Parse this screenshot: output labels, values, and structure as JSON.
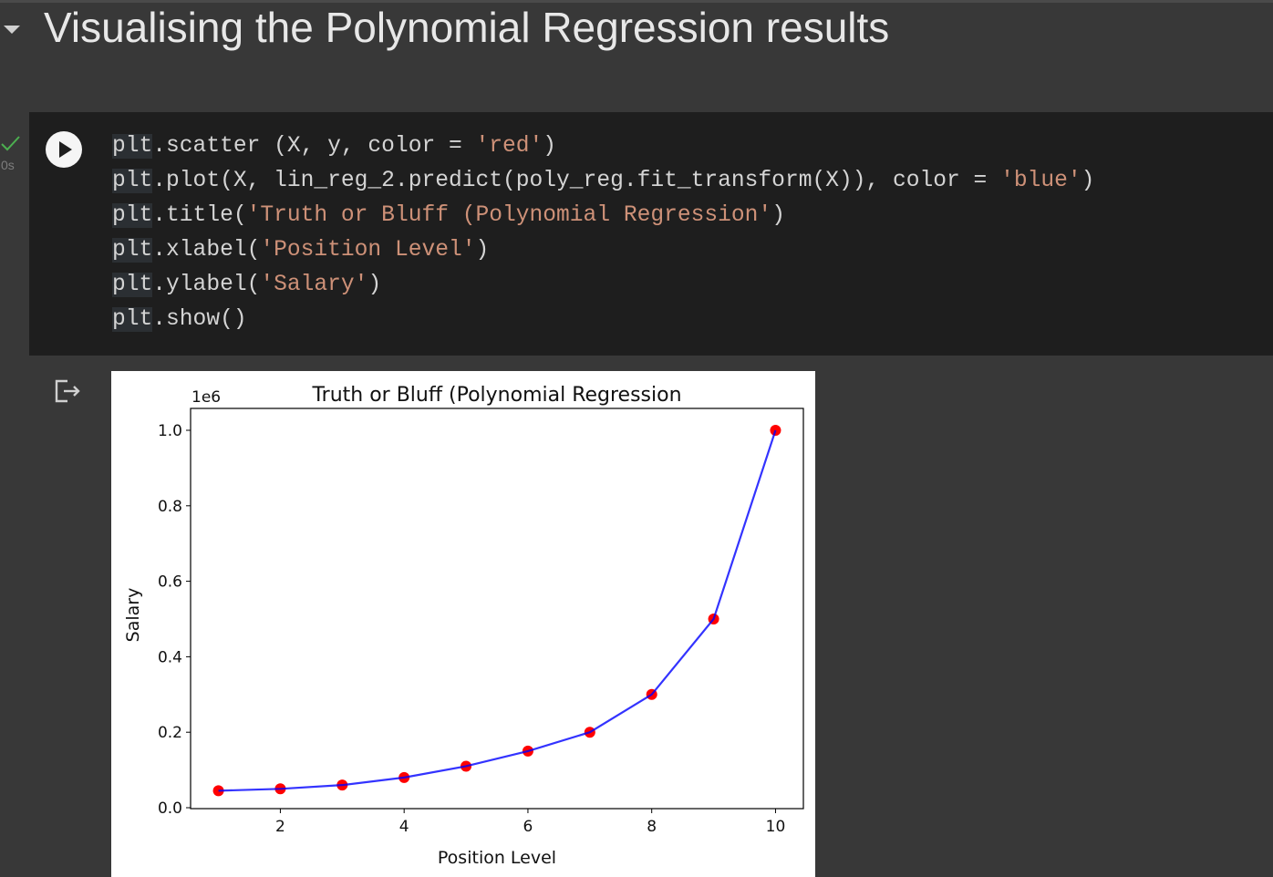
{
  "section": {
    "title": "Visualising the Polynomial Regression results"
  },
  "cell": {
    "exec_time": "0s",
    "status": "success",
    "code_lines": [
      [
        {
          "t": "plt",
          "c": "obj"
        },
        {
          "t": ".scatter (X, y, color = "
        },
        {
          "t": "'red'",
          "c": "str"
        },
        {
          "t": ")"
        }
      ],
      [
        {
          "t": "plt",
          "c": "obj"
        },
        {
          "t": ".plot(X, lin_reg_2.predict(poly_reg.fit_transform(X)), color = "
        },
        {
          "t": "'blue'",
          "c": "str"
        },
        {
          "t": ")"
        }
      ],
      [
        {
          "t": "plt",
          "c": "obj"
        },
        {
          "t": ".title("
        },
        {
          "t": "'Truth or Bluff (Polynomial Regression'",
          "c": "str"
        },
        {
          "t": ")"
        }
      ],
      [
        {
          "t": "plt",
          "c": "obj"
        },
        {
          "t": ".xlabel("
        },
        {
          "t": "'Position Level'",
          "c": "str"
        },
        {
          "t": ")"
        }
      ],
      [
        {
          "t": "plt",
          "c": "obj"
        },
        {
          "t": ".ylabel("
        },
        {
          "t": "'Salary'",
          "c": "str"
        },
        {
          "t": ")"
        }
      ],
      [
        {
          "t": "plt",
          "c": "obj"
        },
        {
          "t": ".show()"
        }
      ]
    ]
  },
  "colors": {
    "scatter": "#ff0000",
    "line": "#0000ff",
    "check": "#4caf50",
    "string": "#ce9178"
  },
  "icons": {
    "collapse": "chevron-down-icon",
    "run": "play-icon",
    "status": "checkmark-icon",
    "output": "output-redirect-icon"
  },
  "chart_data": {
    "type": "scatter",
    "title": "Truth or Bluff (Polynomial Regression",
    "xlabel": "Position Level",
    "ylabel": "Salary",
    "y_offset_label": "1e6",
    "xlim": [
      0.55,
      10.45
    ],
    "ylim": [
      0,
      1000000.0
    ],
    "x_ticks": [
      2,
      4,
      6,
      8,
      10
    ],
    "y_ticks": [
      0.0,
      0.2,
      0.4,
      0.6,
      0.8,
      1.0
    ],
    "y_tick_labels": [
      "0.0",
      "0.2",
      "0.4",
      "0.6",
      "0.8",
      "1.0"
    ],
    "grid": false,
    "x": [
      1,
      2,
      3,
      4,
      5,
      6,
      7,
      8,
      9,
      10
    ],
    "series": [
      {
        "kind": "scatter",
        "color": "#ff0000",
        "values": [
          45000,
          50000,
          60000,
          80000,
          110000,
          150000,
          200000,
          300000,
          500000,
          1000000
        ]
      },
      {
        "kind": "line",
        "color": "#0000ff",
        "values": [
          45000,
          50000,
          60000,
          80000,
          110000,
          150000,
          200000,
          300000,
          500000,
          1000000
        ]
      }
    ]
  }
}
